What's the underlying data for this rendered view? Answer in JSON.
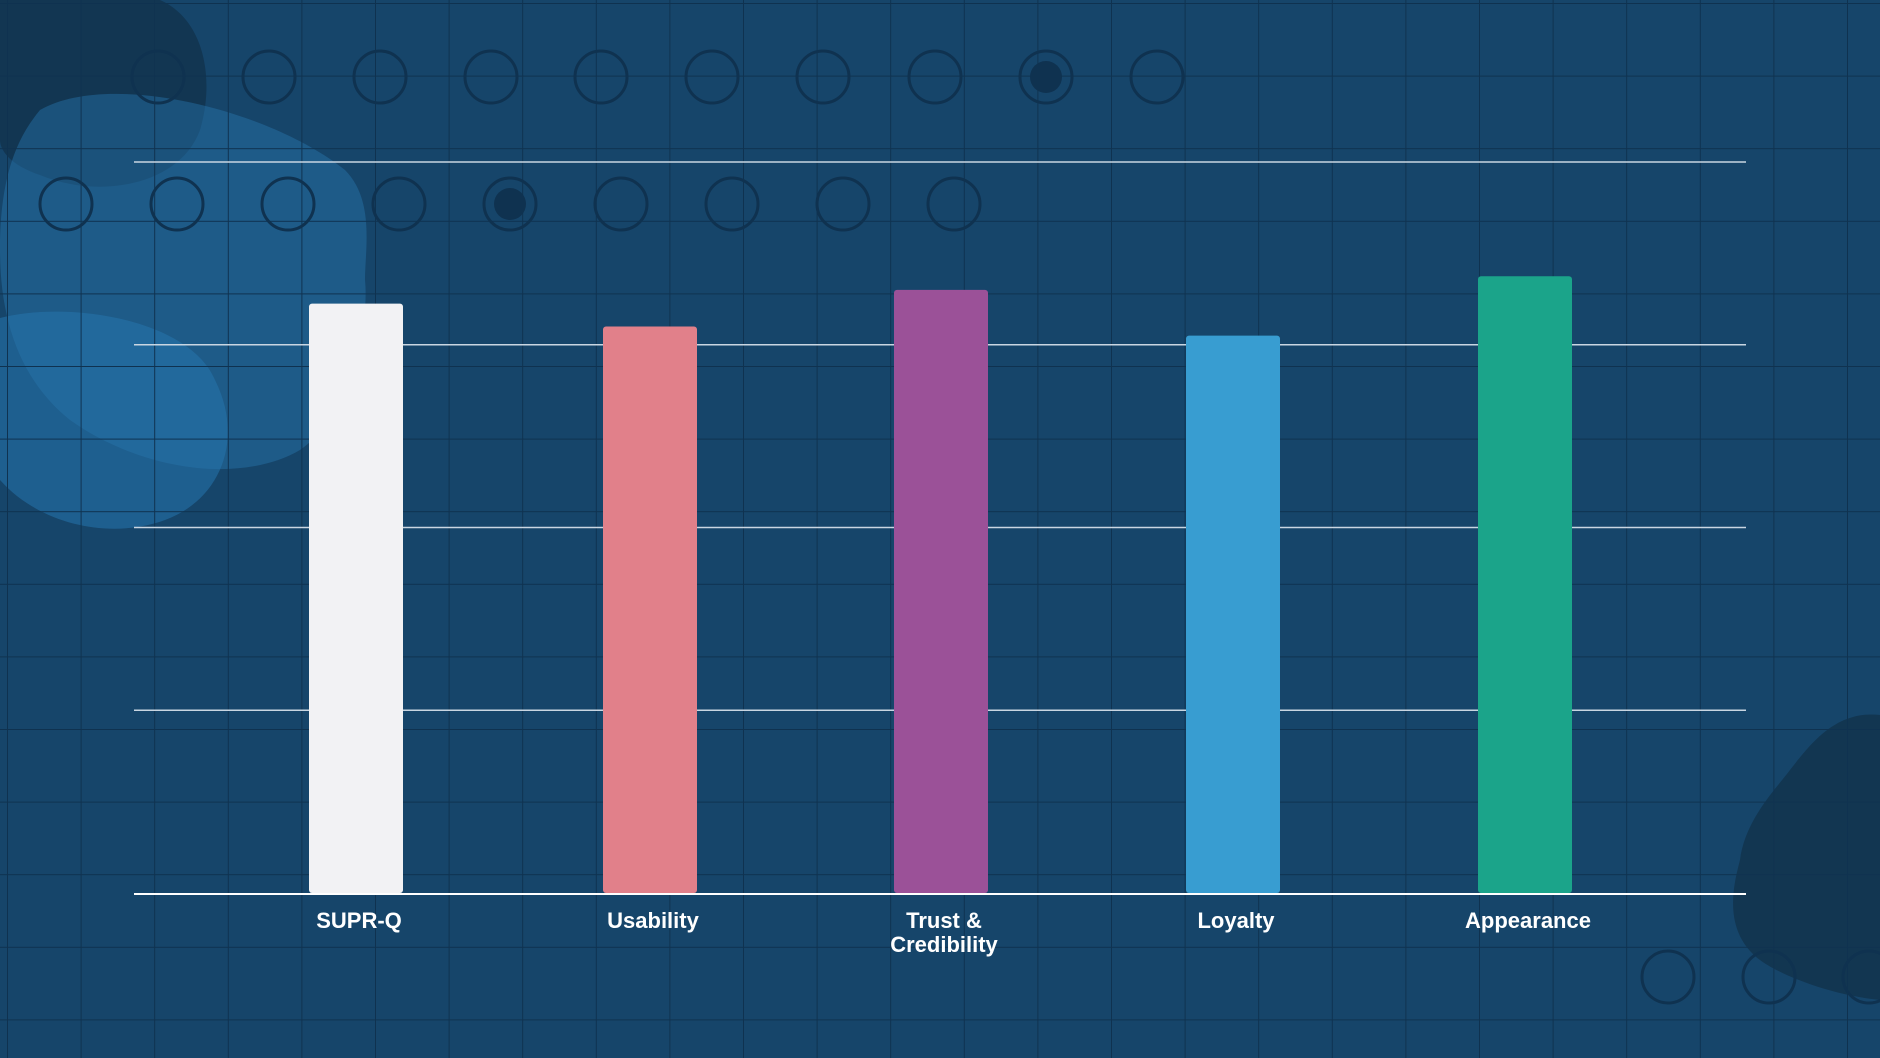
{
  "chart_data": {
    "type": "bar",
    "categories": [
      "SUPR-Q",
      "Usability",
      "Trust & Credibility",
      "Loyalty",
      "Appearance"
    ],
    "category_lines": [
      [
        "SUPR-Q"
      ],
      [
        "Usability"
      ],
      [
        "Trust &",
        "Credibility"
      ],
      [
        "Loyalty"
      ],
      [
        "Appearance"
      ]
    ],
    "values": [
      3.225,
      3.1,
      3.3,
      3.05,
      3.375
    ],
    "colors": [
      "#f2f2f4",
      "#e1808a",
      "#9b5198",
      "#389dd1",
      "#1ba48a"
    ],
    "ylim": [
      0,
      4
    ],
    "gridlines": [
      1,
      2,
      3,
      4
    ],
    "grid": true,
    "title": "",
    "xlabel": "",
    "ylabel": ""
  },
  "theme": {
    "background": "#16456a",
    "gridline_color": "#c9d6e2",
    "label_color": "#ffffff",
    "blob_color": "#2775ad",
    "dark_blob_color": "#12324b"
  }
}
